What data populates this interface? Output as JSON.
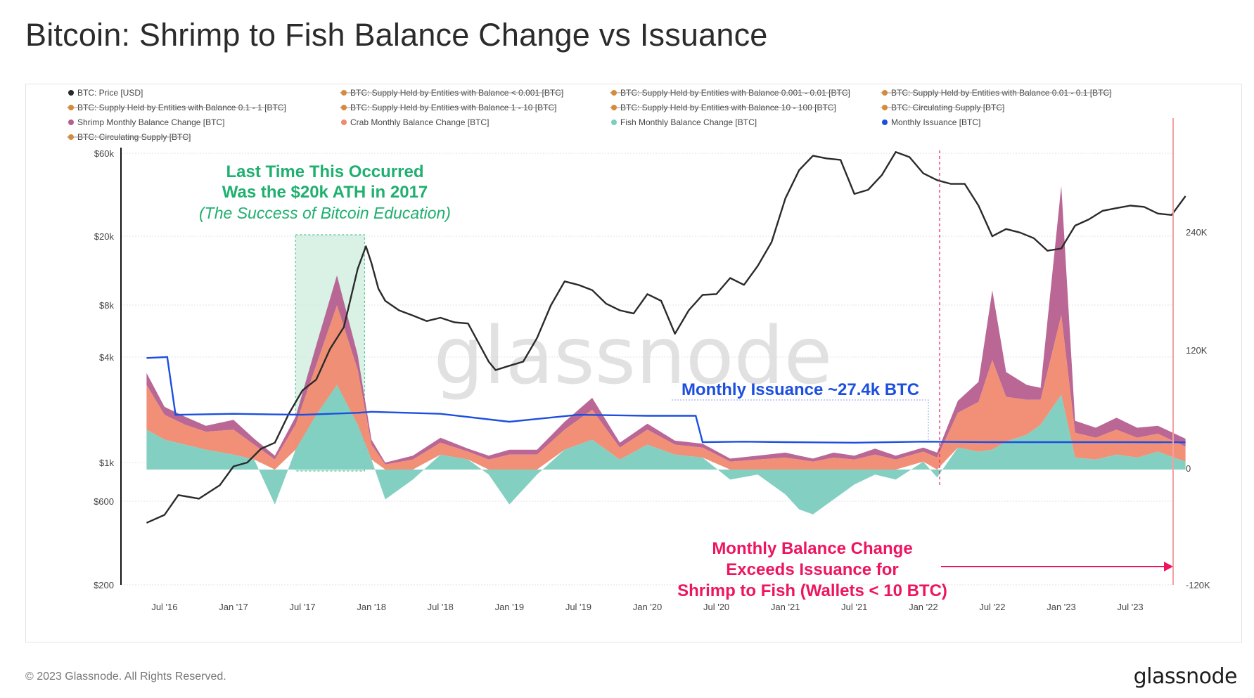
{
  "title": "Bitcoin: Shrimp to Fish Balance Change vs Issuance",
  "footer": "© 2023 Glassnode. All Rights Reserved.",
  "brand": "glassnode",
  "watermark": "glassnode",
  "colors": {
    "price": "#2a2a2a",
    "shrimp": "#b65f8f",
    "crab": "#f08a70",
    "fish": "#7ccdbf",
    "issuance": "#1c4fe0",
    "legend_hidden": "#e0892a",
    "annotation_green": "#1fb06f",
    "annotation_red": "#ee1560",
    "highlight_fill": "#cdeedd"
  },
  "legend": [
    {
      "label": "BTC: Price [USD]",
      "hidden": false,
      "color": "#2a2a2a"
    },
    {
      "label": "BTC: Supply Held by Entities with Balance < 0.001 [BTC]",
      "hidden": true
    },
    {
      "label": "BTC: Supply Held by Entities with Balance 0.001 - 0.01 [BTC]",
      "hidden": true
    },
    {
      "label": "BTC: Supply Held by Entities with Balance 0.01 - 0.1 [BTC]",
      "hidden": true
    },
    {
      "label": "BTC: Supply Held by Entities with Balance 0.1 - 1 [BTC]",
      "hidden": true
    },
    {
      "label": "BTC: Supply Held by Entities with Balance 1 - 10 [BTC]",
      "hidden": true
    },
    {
      "label": "BTC: Supply Held by Entities with Balance 10 - 100 [BTC]",
      "hidden": true
    },
    {
      "label": "BTC: Circulating Supply [BTC]",
      "hidden": true
    },
    {
      "label": "Shrimp Monthly Balance Change [BTC]",
      "hidden": false,
      "color": "#b65f8f"
    },
    {
      "label": "Crab Monthly Balance Change [BTC]",
      "hidden": false,
      "color": "#f08a70"
    },
    {
      "label": "Fish Monthly Balance Change [BTC]",
      "hidden": false,
      "color": "#7ccdbf"
    },
    {
      "label": "Monthly Issuance [BTC]",
      "hidden": false,
      "color": "#1c4fe0"
    },
    {
      "label": "BTC: Circulating Supply [BTC]",
      "hidden": true
    }
  ],
  "annotations": {
    "green_line1": "Last Time This Occurred",
    "green_line2": "Was the $20k ATH in 2017",
    "green_line3": "(The Success of Bitcoin Education)",
    "issuance_label": "Monthly Issuance ~27.4k BTC",
    "red_line1": "Monthly Balance Change",
    "red_line2": "Exceeds Issuance for",
    "red_line3": "Shrimp to Fish (Wallets < 10 BTC)"
  },
  "chart_data": {
    "type": "line",
    "x_ticks": [
      "Jul '16",
      "Jan '17",
      "Jul '17",
      "Jan '18",
      "Jul '18",
      "Jan '19",
      "Jul '19",
      "Jan '20",
      "Jul '20",
      "Jan '21",
      "Jul '21",
      "Jan '22",
      "Jul '22",
      "Jan '23",
      "Jul '23"
    ],
    "left_axis": {
      "scale": "log",
      "ticks": [
        "$60k",
        "$20k",
        "$8k",
        "$4k",
        "$1k",
        "$600",
        "$200"
      ]
    },
    "right_axis": {
      "scale": "linear",
      "ticks": [
        "240K",
        "120K",
        "0",
        "-120K"
      ],
      "ylim": [
        -120000,
        340000
      ]
    },
    "price": {
      "name": "BTC: Price [USD]",
      "x": [
        2016.37,
        2016.5,
        2016.6,
        2016.75,
        2016.9,
        2017.0,
        2017.1,
        2017.2,
        2017.3,
        2017.4,
        2017.5,
        2017.6,
        2017.7,
        2017.8,
        2017.9,
        2017.96,
        2018.0,
        2018.05,
        2018.1,
        2018.2,
        2018.3,
        2018.4,
        2018.5,
        2018.6,
        2018.7,
        2018.85,
        2018.9,
        2019.0,
        2019.1,
        2019.2,
        2019.3,
        2019.4,
        2019.5,
        2019.6,
        2019.7,
        2019.8,
        2019.9,
        2020.0,
        2020.1,
        2020.2,
        2020.3,
        2020.4,
        2020.5,
        2020.6,
        2020.7,
        2020.8,
        2020.9,
        2021.0,
        2021.1,
        2021.2,
        2021.3,
        2021.4,
        2021.5,
        2021.6,
        2021.7,
        2021.8,
        2021.9,
        2022.0,
        2022.1,
        2022.2,
        2022.3,
        2022.4,
        2022.5,
        2022.6,
        2022.7,
        2022.8,
        2022.9,
        2023.0,
        2023.1,
        2023.2,
        2023.3,
        2023.4,
        2023.5,
        2023.6,
        2023.7,
        2023.8,
        2023.9
      ],
      "y": [
        450,
        500,
        650,
        620,
        740,
        950,
        1000,
        1200,
        1300,
        1900,
        2600,
        3000,
        4500,
        6000,
        13000,
        17500,
        14000,
        10000,
        8500,
        7500,
        7000,
        6500,
        6800,
        6400,
        6300,
        3800,
        3400,
        3600,
        3800,
        5200,
        8000,
        11000,
        10500,
        9800,
        8200,
        7500,
        7200,
        9300,
        8500,
        5500,
        7500,
        9200,
        9300,
        11500,
        10500,
        13500,
        18500,
        33000,
        48000,
        58000,
        56000,
        55000,
        35000,
        37000,
        45000,
        61000,
        57000,
        46000,
        42000,
        40000,
        40000,
        30000,
        20000,
        22000,
        21000,
        19500,
        16500,
        17000,
        23000,
        25000,
        28000,
        29000,
        30000,
        29500,
        27000,
        26500,
        34000
      ]
    },
    "issuance": {
      "name": "Monthly Issuance [BTC]",
      "x": [
        2016.37,
        2016.52,
        2016.58,
        2017.0,
        2017.5,
        2017.9,
        2018.0,
        2018.5,
        2019.0,
        2019.5,
        2020.0,
        2020.35,
        2020.4,
        2020.7,
        2021.0,
        2021.5,
        2022.0,
        2022.5,
        2023.0,
        2023.5,
        2023.9
      ],
      "y": [
        112000,
        113000,
        55000,
        56000,
        55000,
        57000,
        58000,
        56000,
        48000,
        55000,
        54000,
        54000,
        27500,
        28000,
        27500,
        27000,
        28000,
        27500,
        27500,
        27500,
        27400
      ]
    },
    "series": [
      {
        "name": "Shrimp Monthly Balance Change [BTC]"
      },
      {
        "name": "Crab Monthly Balance Change [BTC]"
      },
      {
        "name": "Fish Monthly Balance Change [BTC]"
      }
    ],
    "fish_x": [
      2016.37,
      2016.5,
      2016.65,
      2016.8,
      2017.0,
      2017.15,
      2017.3,
      2017.45,
      2017.6,
      2017.75,
      2017.9,
      2018.0,
      2018.1,
      2018.3,
      2018.5,
      2018.7,
      2018.85,
      2019.0,
      2019.2,
      2019.4,
      2019.6,
      2019.8,
      2020.0,
      2020.2,
      2020.4,
      2020.6,
      2020.8,
      2021.0,
      2021.1,
      2021.2,
      2021.35,
      2021.5,
      2021.65,
      2021.8,
      2022.0,
      2022.1,
      2022.25,
      2022.4,
      2022.5,
      2022.6,
      2022.75,
      2022.85,
      2023.0,
      2023.1,
      2023.25,
      2023.4,
      2023.55,
      2023.7,
      2023.9
    ],
    "fish_y": [
      40000,
      30000,
      25000,
      20000,
      15000,
      10000,
      -35000,
      20000,
      55000,
      85000,
      45000,
      10000,
      -30000,
      -10000,
      15000,
      10000,
      -5000,
      -35000,
      -5000,
      20000,
      30000,
      10000,
      25000,
      15000,
      12000,
      -10000,
      -5000,
      -25000,
      -40000,
      -45000,
      -30000,
      -15000,
      -5000,
      -10000,
      8000,
      -8000,
      22000,
      18000,
      20000,
      28000,
      35000,
      45000,
      75000,
      12000,
      10000,
      15000,
      12000,
      18000,
      8000
    ],
    "crab_extra_y": [
      45000,
      25000,
      20000,
      18000,
      25000,
      15000,
      10000,
      25000,
      50000,
      80000,
      55000,
      15000,
      5000,
      10000,
      12000,
      8000,
      10000,
      15000,
      15000,
      20000,
      30000,
      12000,
      15000,
      10000,
      10000,
      8000,
      10000,
      12000,
      10000,
      8000,
      12000,
      10000,
      15000,
      10000,
      10000,
      12000,
      35000,
      50000,
      90000,
      45000,
      35000,
      25000,
      80000,
      25000,
      22000,
      25000,
      20000,
      18000,
      15000
    ],
    "shrimp_extra_y": [
      12000,
      8000,
      8000,
      6000,
      10000,
      6000,
      4000,
      8000,
      20000,
      30000,
      15000,
      5000,
      2000,
      4000,
      5000,
      3000,
      4000,
      5000,
      5000,
      8000,
      12000,
      5000,
      6000,
      4000,
      4000,
      3000,
      4000,
      5000,
      4000,
      3000,
      5000,
      4000,
      6000,
      4000,
      4000,
      5000,
      12000,
      20000,
      70000,
      25000,
      15000,
      12000,
      130000,
      12000,
      10000,
      12000,
      10000,
      8000,
      8000
    ]
  }
}
